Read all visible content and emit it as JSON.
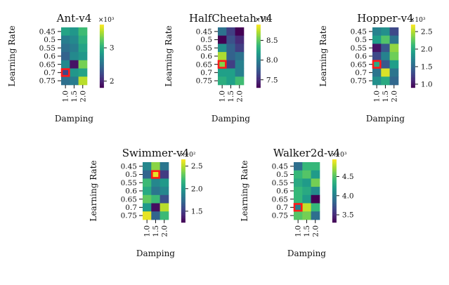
{
  "chart_data": [
    {
      "type": "heatmap",
      "title": "Ant-v4",
      "xlabel": "Damping",
      "ylabel": "Learning Rate",
      "x_categories": [
        "1.0",
        "1.5",
        "2.0"
      ],
      "y_categories": [
        "0.45",
        "0.5",
        "0.55",
        "0.6",
        "0.65",
        "0.7",
        "0.75"
      ],
      "values": [
        [
          2.9,
          2.8,
          3.1
        ],
        [
          2.6,
          2.7,
          3.0
        ],
        [
          2.5,
          2.6,
          2.9
        ],
        [
          2.4,
          2.7,
          2.8
        ],
        [
          2.7,
          1.9,
          3.3
        ],
        [
          2.2,
          2.8,
          2.9
        ],
        [
          2.5,
          2.6,
          3.5
        ]
      ],
      "highlight": {
        "row": 5,
        "col": 0
      },
      "colorbar": {
        "min": 1.8,
        "max": 3.7,
        "ticks": [
          "2",
          "3"
        ],
        "tick_values": [
          2,
          3
        ],
        "exponent": "×10³"
      }
    },
    {
      "type": "heatmap",
      "title": "HalfCheetah-v4",
      "xlabel": "Damping",
      "ylabel": "Learning Rate",
      "x_categories": [
        "1.0",
        "1.5",
        "2.0"
      ],
      "y_categories": [
        "0.45",
        "0.5",
        "0.55",
        "0.6",
        "0.65",
        "0.7",
        "0.75"
      ],
      "values": [
        [
          7.9,
          7.6,
          7.3
        ],
        [
          7.2,
          7.7,
          7.5
        ],
        [
          8.1,
          7.8,
          7.6
        ],
        [
          8.7,
          7.8,
          7.9
        ],
        [
          8.6,
          7.6,
          8.0
        ],
        [
          8.2,
          8.2,
          8.0
        ],
        [
          8.3,
          8.2,
          8.4
        ]
      ],
      "highlight": {
        "row": 4,
        "col": 0
      },
      "colorbar": {
        "min": 7.3,
        "max": 8.9,
        "ticks": [
          "7.5",
          "8.0",
          "8.5"
        ],
        "tick_values": [
          7.5,
          8.0,
          8.5
        ],
        "exponent": "×10³"
      }
    },
    {
      "type": "heatmap",
      "title": "Hopper-v4",
      "xlabel": "Damping",
      "ylabel": "Learning Rate",
      "x_categories": [
        "1.0",
        "1.5",
        "2.0"
      ],
      "y_categories": [
        "0.45",
        "0.5",
        "0.55",
        "0.6",
        "0.65",
        "0.7",
        "0.75"
      ],
      "values": [
        [
          1.7,
          1.8,
          1.3
        ],
        [
          1.9,
          2.2,
          1.6
        ],
        [
          1.0,
          1.4,
          2.4
        ],
        [
          1.3,
          1.7,
          2.3
        ],
        [
          2.0,
          1.4,
          1.9
        ],
        [
          1.6,
          2.6,
          1.6
        ],
        [
          1.8,
          2.0,
          1.5
        ]
      ],
      "highlight": {
        "row": 4,
        "col": 0
      },
      "colorbar": {
        "min": 0.9,
        "max": 2.7,
        "ticks": [
          "1.0",
          "1.5",
          "2.0",
          "2.5"
        ],
        "tick_values": [
          1.0,
          1.5,
          2.0,
          2.5
        ],
        "exponent": "×10³"
      }
    },
    {
      "type": "heatmap",
      "title": "Swimmer-v4",
      "xlabel": "Damping",
      "ylabel": "Learning Rate",
      "x_categories": [
        "1.0",
        "1.5",
        "2.0"
      ],
      "y_categories": [
        "0.45",
        "0.5",
        "0.55",
        "0.6",
        "0.65",
        "0.7",
        "0.75"
      ],
      "values": [
        [
          1.9,
          2.4,
          1.8
        ],
        [
          1.7,
          2.6,
          1.5
        ],
        [
          2.2,
          1.9,
          2.0
        ],
        [
          2.1,
          1.8,
          1.9
        ],
        [
          2.3,
          2.2,
          1.6
        ],
        [
          2.0,
          1.3,
          2.5
        ],
        [
          2.6,
          1.7,
          2.2
        ]
      ],
      "highlight": {
        "row": 1,
        "col": 1
      },
      "colorbar": {
        "min": 1.25,
        "max": 2.65,
        "ticks": [
          "1.5",
          "2.0",
          "2.5"
        ],
        "tick_values": [
          1.5,
          2.0,
          2.5
        ],
        "exponent": "×10²"
      }
    },
    {
      "type": "heatmap",
      "title": "Walker2d-v4",
      "xlabel": "Damping",
      "ylabel": "Learning Rate",
      "x_categories": [
        "1.0",
        "1.5",
        "2.0"
      ],
      "y_categories": [
        "0.45",
        "0.5",
        "0.55",
        "0.6",
        "0.65",
        "0.7",
        "0.75"
      ],
      "values": [
        [
          3.9,
          4.4,
          4.4
        ],
        [
          4.4,
          4.5,
          4.2
        ],
        [
          4.3,
          4.2,
          4.6
        ],
        [
          4.4,
          4.3,
          4.1
        ],
        [
          4.4,
          4.2,
          3.3
        ],
        [
          4.0,
          4.8,
          4.4
        ],
        [
          4.5,
          4.6,
          3.9
        ]
      ],
      "highlight": {
        "row": 5,
        "col": 0
      },
      "colorbar": {
        "min": 3.3,
        "max": 4.95,
        "ticks": [
          "3.5",
          "4.0",
          "4.5"
        ],
        "tick_values": [
          3.5,
          4.0,
          4.5
        ],
        "exponent": "×10³"
      }
    }
  ]
}
